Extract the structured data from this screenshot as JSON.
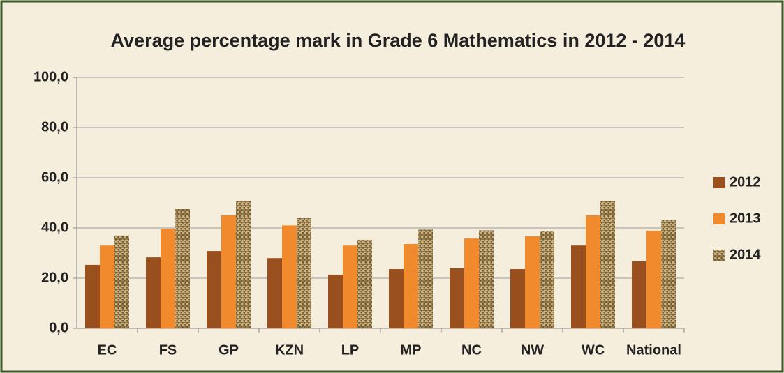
{
  "chart_data": {
    "type": "bar",
    "title": "Average percentage mark in Grade 6 Mathematics in 2012 - 2014",
    "categories": [
      "EC",
      "FS",
      "GP",
      "KZN",
      "LP",
      "MP",
      "NC",
      "NW",
      "WC",
      "National"
    ],
    "series": [
      {
        "name": "2012",
        "color": "#9a4f1e",
        "values": [
          25.3,
          28.3,
          30.8,
          28.0,
          21.4,
          23.6,
          23.9,
          23.6,
          33.0,
          26.7
        ]
      },
      {
        "name": "2013",
        "color": "#f08a2c",
        "values": [
          33.0,
          39.7,
          45.0,
          41.0,
          33.0,
          33.6,
          35.8,
          36.7,
          45.0,
          38.9
        ]
      },
      {
        "name": "2014",
        "color": "#c9b27c",
        "values": [
          37.0,
          47.5,
          50.8,
          43.9,
          35.3,
          39.4,
          39.0,
          38.6,
          50.8,
          43.1
        ]
      }
    ],
    "ylim": [
      0,
      100
    ],
    "yticks": [
      {
        "value": 0,
        "label": "0,0"
      },
      {
        "value": 20,
        "label": "20,0"
      },
      {
        "value": 40,
        "label": "40,0"
      },
      {
        "value": 60,
        "label": "60,0"
      },
      {
        "value": 80,
        "label": "80,0"
      },
      {
        "value": 100,
        "label": "100,0"
      }
    ],
    "grid": true,
    "legend": "right"
  }
}
